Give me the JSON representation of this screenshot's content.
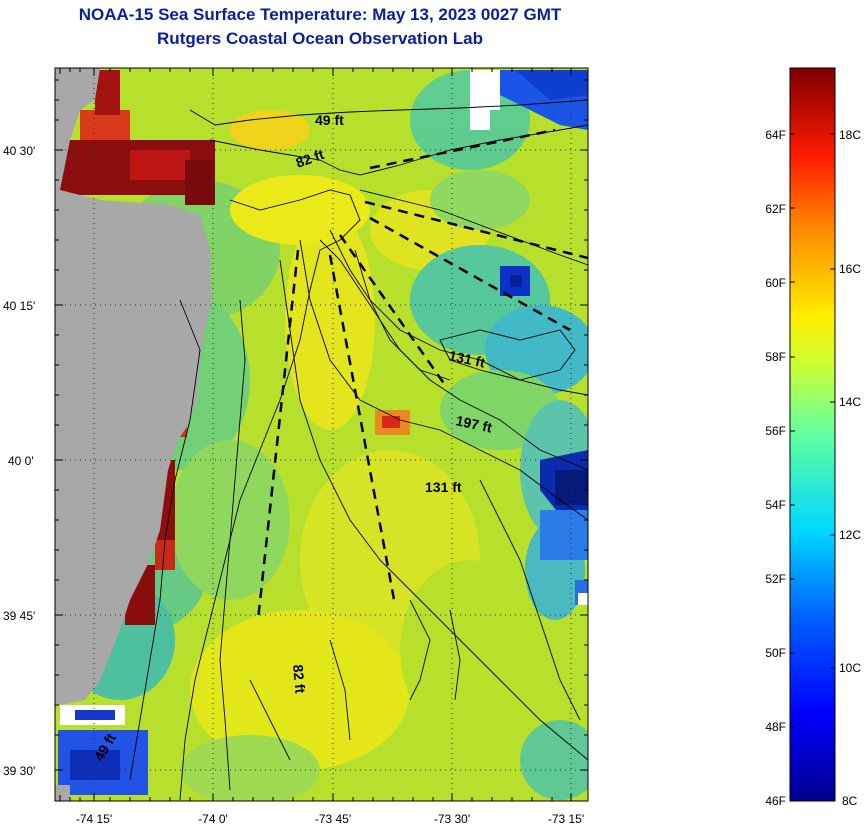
{
  "header": {
    "title_line1": "NOAA-15 Sea Surface Temperature:  May 13, 2023 0027 GMT",
    "title_line2": "Rutgers Coastal Ocean Observation Lab"
  },
  "map": {
    "lat_labels": [
      "40 30'",
      "40 15'",
      "40 0'",
      "39 45'",
      "39 30'"
    ],
    "lon_labels": [
      "-74 15'",
      "-74 0'",
      "-73 45'",
      "-73 30'",
      "-73 15'"
    ],
    "depth_labels": [
      "49 ft",
      "82 ft",
      "131 ft",
      "197 ft",
      "131 ft",
      "82 ft",
      "49 ft"
    ],
    "land_color": "#a8a8a8"
  },
  "colorbar": {
    "fahrenheit_labels": [
      "64F",
      "62F",
      "60F",
      "58F",
      "56F",
      "54F",
      "52F",
      "50F",
      "48F",
      "46F"
    ],
    "celsius_labels": [
      "18C",
      "16C",
      "14C",
      "12C",
      "10C",
      "8C"
    ]
  }
}
